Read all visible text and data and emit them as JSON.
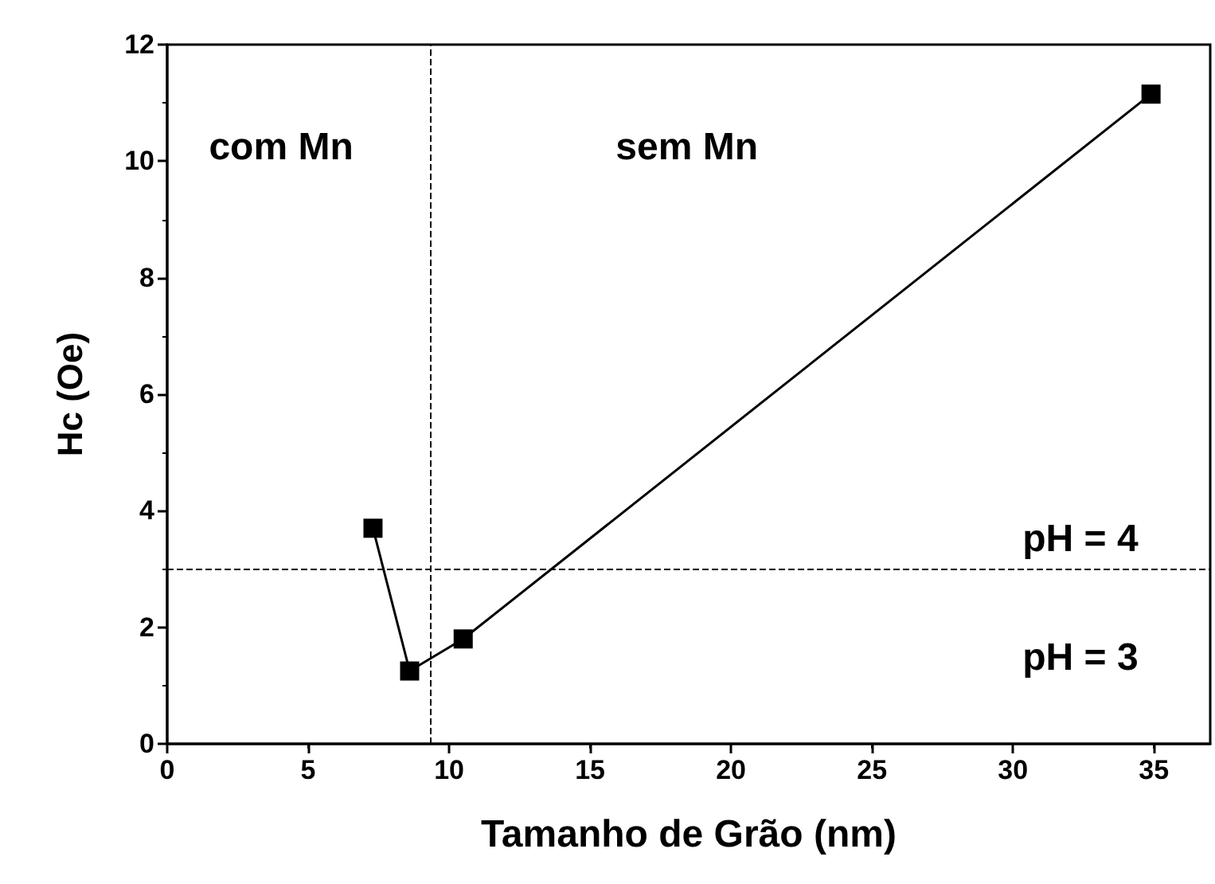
{
  "chart_data": {
    "type": "line",
    "xlabel": "Tamanho de Grão (nm)",
    "ylabel": "Hc (Oe)",
    "x": [
      7.3,
      8.6,
      10.5,
      34.9
    ],
    "series": [
      {
        "color": "#000000",
        "values": [
          3.7,
          1.25,
          1.8,
          11.15
        ]
      }
    ],
    "marker": "square",
    "line_style": "solid",
    "grid": false,
    "xlim": [
      0,
      37
    ],
    "xticks": [
      0,
      5,
      10,
      15,
      20,
      25,
      30,
      35
    ],
    "ylim": [
      0,
      12
    ],
    "yticks": [
      0,
      2,
      4,
      6,
      8,
      10,
      12
    ],
    "ref_lines": [
      {
        "axis": "x",
        "value": 9.35,
        "line_style": "dashed",
        "color": "#000000"
      },
      {
        "axis": "y",
        "value": 3,
        "line_style": "dashed",
        "color": "#000000"
      }
    ],
    "annotations": [
      "com Mn",
      "sem Mn",
      "pH = 4",
      "pH = 3"
    ]
  }
}
